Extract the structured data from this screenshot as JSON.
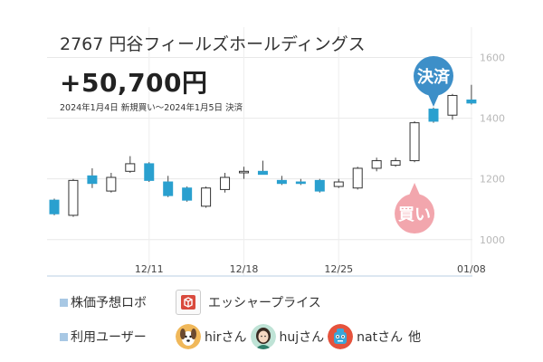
{
  "stock": {
    "title": "2767 円谷フィールズホールディングス"
  },
  "result": {
    "profit": "+50,700円",
    "period": "2024年1月4日 新規買い〜2024年1月5日 決済"
  },
  "markers": {
    "sell_label": "決済",
    "buy_label": "買い",
    "sell_color": "#3d8fc8",
    "buy_color": "#f2a6ad"
  },
  "footer": {
    "robo_label": "株価予想ロボ",
    "robo_name": "エッシャープライス",
    "robo_icon": "cube-icon",
    "users_label": "利用ユーザー",
    "users": [
      {
        "name": "hirさん",
        "avatar": "dog-avatar"
      },
      {
        "name": "hujさん",
        "avatar": "woman-avatar"
      },
      {
        "name": "natさん",
        "avatar": "robot-avatar"
      }
    ],
    "others": "他"
  },
  "chart_data": {
    "type": "candlestick",
    "x_ticks": [
      "12/11",
      "12/18",
      "12/25",
      "01/08"
    ],
    "y_ticks": [
      1000,
      1200,
      1400,
      1600
    ],
    "ylim": [
      880,
      1700
    ],
    "grid": true,
    "colors": {
      "up": "#ffffff",
      "down": "#2aa0cf",
      "wick": "#444444"
    },
    "candles": [
      {
        "o": 1130,
        "h": 1135,
        "l": 1080,
        "c": 1085
      },
      {
        "o": 1080,
        "h": 1200,
        "l": 1075,
        "c": 1195
      },
      {
        "o": 1210,
        "h": 1235,
        "l": 1170,
        "c": 1185
      },
      {
        "o": 1160,
        "h": 1220,
        "l": 1155,
        "c": 1205
      },
      {
        "o": 1225,
        "h": 1275,
        "l": 1220,
        "c": 1250
      },
      {
        "o": 1250,
        "h": 1255,
        "l": 1190,
        "c": 1195
      },
      {
        "o": 1190,
        "h": 1210,
        "l": 1140,
        "c": 1145
      },
      {
        "o": 1170,
        "h": 1175,
        "l": 1125,
        "c": 1130
      },
      {
        "o": 1110,
        "h": 1175,
        "l": 1105,
        "c": 1170
      },
      {
        "o": 1165,
        "h": 1220,
        "l": 1155,
        "c": 1205
      },
      {
        "o": 1220,
        "h": 1240,
        "l": 1200,
        "c": 1225
      },
      {
        "o": 1225,
        "h": 1260,
        "l": 1215,
        "c": 1215
      },
      {
        "o": 1195,
        "h": 1210,
        "l": 1180,
        "c": 1185
      },
      {
        "o": 1190,
        "h": 1200,
        "l": 1180,
        "c": 1185
      },
      {
        "o": 1195,
        "h": 1200,
        "l": 1155,
        "c": 1160
      },
      {
        "o": 1175,
        "h": 1200,
        "l": 1170,
        "c": 1190
      },
      {
        "o": 1170,
        "h": 1240,
        "l": 1165,
        "c": 1235
      },
      {
        "o": 1235,
        "h": 1270,
        "l": 1225,
        "c": 1260
      },
      {
        "o": 1245,
        "h": 1270,
        "l": 1240,
        "c": 1260
      },
      {
        "o": 1260,
        "h": 1390,
        "l": 1255,
        "c": 1385
      },
      {
        "o": 1430,
        "h": 1435,
        "l": 1385,
        "c": 1390
      },
      {
        "o": 1410,
        "h": 1480,
        "l": 1395,
        "c": 1475
      },
      {
        "o": 1460,
        "h": 1510,
        "l": 1445,
        "c": 1450
      }
    ],
    "tick_positions": {
      "12/11": 5,
      "12/18": 10,
      "12/25": 15,
      "01/08": 22
    },
    "buy_index": 19,
    "sell_index": 20
  }
}
